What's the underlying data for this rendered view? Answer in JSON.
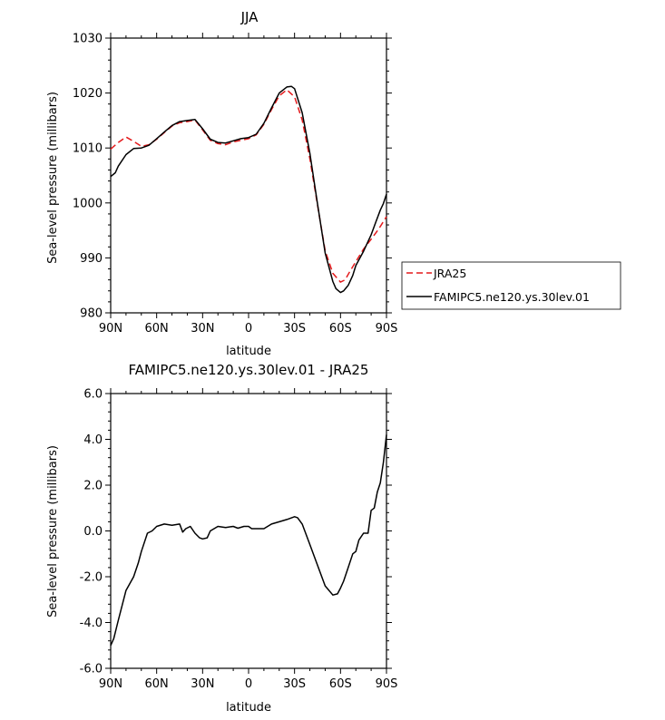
{
  "chart_data": [
    {
      "type": "line",
      "title": "JJA",
      "xlabel": "latitude",
      "ylabel": "Sea-level pressure (millibars)",
      "xlim": [
        90,
        -90
      ],
      "ylim": [
        980,
        1030
      ],
      "x_ticks": [
        90,
        60,
        30,
        0,
        -30,
        -60,
        -90
      ],
      "x_tick_labels": [
        "90N",
        "60N",
        "30N",
        "0",
        "30S",
        "60S",
        "90S"
      ],
      "y_ticks": [
        980,
        990,
        1000,
        1010,
        1020,
        1030
      ],
      "y_tick_labels": [
        "980",
        "990",
        "1000",
        "1010",
        "1020",
        "1030"
      ],
      "legend": {
        "placement": "outside-right"
      },
      "series": [
        {
          "name": "JRA25",
          "color": "#e41a1c",
          "dash": "dashed",
          "x": [
            90,
            85,
            80,
            75,
            70,
            65,
            60,
            55,
            50,
            45,
            40,
            35,
            30,
            25,
            20,
            15,
            10,
            5,
            0,
            -5,
            -10,
            -15,
            -20,
            -25,
            -30,
            -35,
            -40,
            -45,
            -50,
            -55,
            -60,
            -63,
            -66,
            -70,
            -75,
            -80,
            -85,
            -90
          ],
          "y": [
            1009.8,
            1011.0,
            1012.0,
            1011.2,
            1010.3,
            1010.6,
            1011.6,
            1012.8,
            1014.0,
            1014.6,
            1014.8,
            1015.1,
            1013.3,
            1011.4,
            1010.8,
            1010.6,
            1011.1,
            1011.4,
            1011.7,
            1012.4,
            1014.3,
            1017.0,
            1019.5,
            1020.6,
            1019.3,
            1015.1,
            1008.0,
            999.6,
            991.3,
            987.2,
            985.6,
            986.0,
            987.5,
            989.3,
            991.6,
            993.4,
            995.3,
            997.5
          ]
        },
        {
          "name": "FAMIPC5.ne120.ys.30lev.01",
          "color": "#000000",
          "dash": "solid",
          "x": [
            90,
            87,
            85,
            80,
            75,
            70,
            65,
            60,
            55,
            50,
            45,
            40,
            35,
            30,
            25,
            20,
            15,
            10,
            5,
            0,
            -5,
            -10,
            -15,
            -20,
            -25,
            -28,
            -30,
            -35,
            -40,
            -45,
            -50,
            -55,
            -57,
            -60,
            -62,
            -65,
            -68,
            -70,
            -75,
            -80,
            -83,
            -86,
            -88,
            -90
          ],
          "y": [
            1004.8,
            1005.5,
            1006.7,
            1008.8,
            1009.9,
            1010.0,
            1010.5,
            1011.7,
            1012.9,
            1014.1,
            1014.8,
            1015.0,
            1015.2,
            1013.5,
            1011.6,
            1011.0,
            1010.9,
            1011.3,
            1011.7,
            1011.9,
            1012.5,
            1014.5,
            1017.3,
            1020.0,
            1021.1,
            1021.2,
            1020.8,
            1016.4,
            1009.0,
            999.8,
            990.9,
            985.7,
            984.4,
            983.7,
            984.0,
            985.0,
            986.8,
            988.6,
            991.2,
            994.2,
            996.5,
            998.7,
            999.9,
            1001.6
          ]
        }
      ]
    },
    {
      "type": "line",
      "title": "FAMIPC5.ne120.ys.30lev.01 - JRA25",
      "xlabel": "latitude",
      "ylabel": "Sea-level pressure (millibars)",
      "xlim": [
        90,
        -90
      ],
      "ylim": [
        -6,
        6
      ],
      "x_ticks": [
        90,
        60,
        30,
        0,
        -30,
        -60,
        -90
      ],
      "x_tick_labels": [
        "90N",
        "60N",
        "30N",
        "0",
        "30S",
        "60S",
        "90S"
      ],
      "y_ticks": [
        -6,
        -4,
        -2,
        0,
        2,
        4,
        6
      ],
      "y_tick_labels": [
        "-6.0",
        "-4.0",
        "-2.0",
        "0.0",
        "2.0",
        "4.0",
        "6.0"
      ],
      "series": [
        {
          "color": "#000000",
          "dash": "solid",
          "x": [
            90,
            88,
            85,
            80,
            75,
            72,
            70,
            66,
            63,
            60,
            55,
            50,
            45,
            43,
            41,
            38,
            35,
            32,
            30,
            27,
            25,
            20,
            15,
            10,
            7,
            3,
            0,
            -2,
            -5,
            -10,
            -15,
            -20,
            -25,
            -30,
            -32,
            -35,
            -40,
            -45,
            -50,
            -55,
            -58,
            -60,
            -62,
            -65,
            -68,
            -70,
            -72,
            -75,
            -78,
            -80,
            -82,
            -84,
            -86,
            -88,
            -90
          ],
          "y": [
            -5.0,
            -4.7,
            -3.9,
            -2.6,
            -2.0,
            -1.4,
            -0.9,
            -0.1,
            0.0,
            0.2,
            0.3,
            0.25,
            0.3,
            -0.05,
            0.1,
            0.2,
            -0.1,
            -0.3,
            -0.35,
            -0.3,
            0.0,
            0.2,
            0.15,
            0.2,
            0.12,
            0.2,
            0.2,
            0.1,
            0.1,
            0.1,
            0.3,
            0.4,
            0.5,
            0.62,
            0.58,
            0.3,
            -0.6,
            -1.5,
            -2.4,
            -2.8,
            -2.75,
            -2.5,
            -2.2,
            -1.6,
            -1.0,
            -0.9,
            -0.4,
            -0.1,
            -0.1,
            0.9,
            1.0,
            1.7,
            2.1,
            3.0,
            4.2
          ]
        }
      ]
    }
  ]
}
